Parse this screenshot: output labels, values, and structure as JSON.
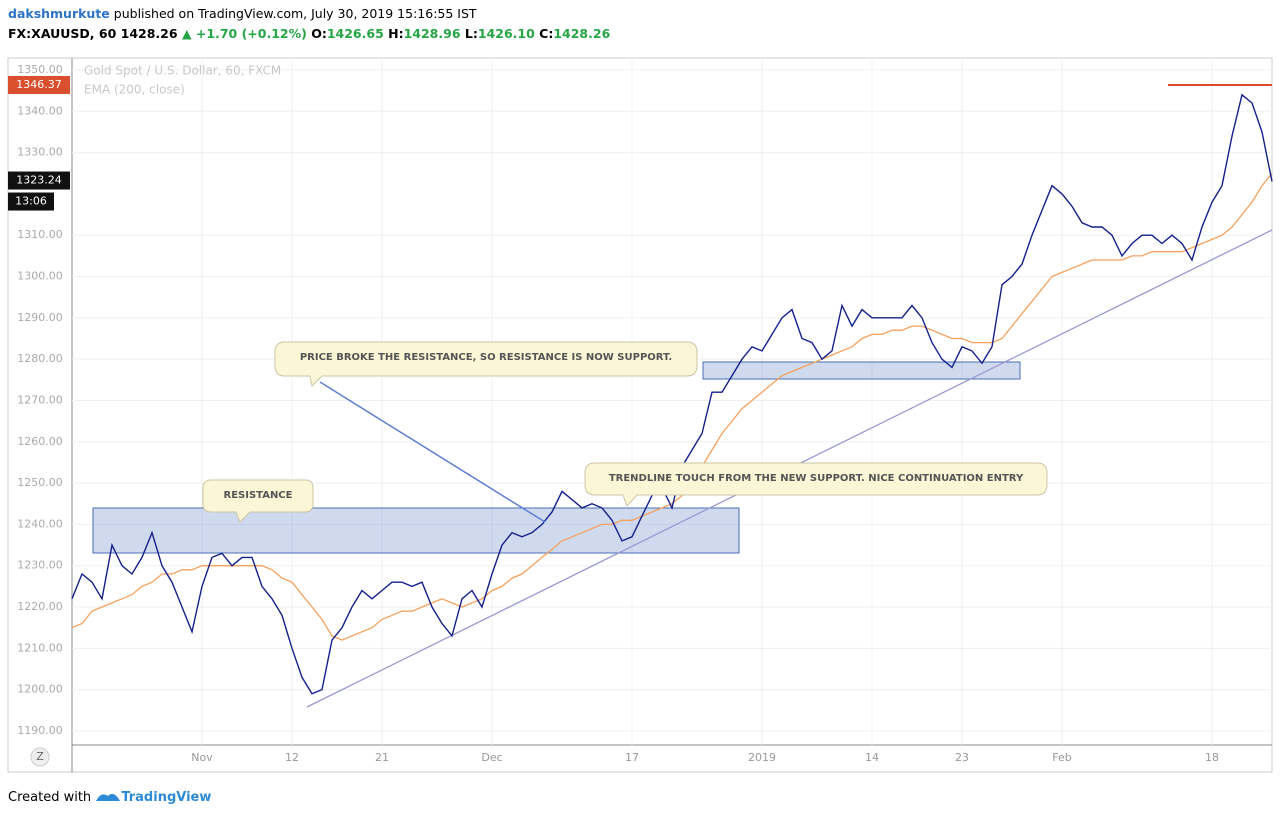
{
  "header": {
    "author": "dakshmurkute",
    "published": "published on TradingView.com, July 30, 2019 15:16:55 IST",
    "symbol": "FX:XAUUSD, 60",
    "price": "1428.26",
    "change": "▲ +1.70 (+0.12%)",
    "ohlc": [
      {
        "label": "O:",
        "value": "1426.65"
      },
      {
        "label": "H:",
        "value": "1428.96"
      },
      {
        "label": "L:",
        "value": "1426.10"
      },
      {
        "label": "C:",
        "value": "1428.26"
      }
    ]
  },
  "footer": {
    "text": "Created with",
    "brand": "TradingView"
  },
  "chart_data": {
    "type": "line",
    "categories": [
      null,
      null,
      null,
      null,
      null,
      null,
      null,
      null,
      null,
      null,
      null,
      null,
      null,
      "Nov",
      null,
      null,
      null,
      null,
      null,
      null,
      null,
      null,
      "12",
      null,
      null,
      null,
      null,
      null,
      null,
      null,
      null,
      "21",
      null,
      null,
      null,
      null,
      null,
      null,
      null,
      null,
      null,
      null,
      "Dec",
      null,
      null,
      null,
      null,
      null,
      null,
      null,
      null,
      null,
      null,
      null,
      null,
      null,
      "17",
      null,
      null,
      null,
      null,
      null,
      null,
      null,
      null,
      null,
      null,
      null,
      null,
      "2019",
      null,
      null,
      null,
      null,
      null,
      null,
      null,
      null,
      null,
      null,
      "14",
      null,
      null,
      null,
      null,
      null,
      null,
      null,
      null,
      "23",
      null,
      null,
      null,
      null,
      null,
      null,
      null,
      null,
      null,
      "Feb",
      null,
      null,
      null,
      null,
      null,
      null,
      null,
      null,
      null,
      null,
      null,
      null,
      null,
      null,
      "18",
      null,
      null,
      null,
      null,
      null,
      null
    ],
    "series": [
      {
        "name": "Gold Spot / U.S. Dollar, 60, FXCM",
        "color": "#14208c",
        "values": [
          1222,
          1228,
          1226,
          1222,
          1235,
          1230,
          1228,
          1232,
          1238,
          1230,
          1226,
          1220,
          1214,
          1225,
          1232,
          1233,
          1230,
          1232,
          1232,
          1225,
          1222,
          1218,
          1210,
          1203,
          1199,
          1200,
          1212,
          1215,
          1220,
          1224,
          1222,
          1224,
          1226,
          1226,
          1225,
          1226,
          1220,
          1216,
          1213,
          1222,
          1224,
          1220,
          1228,
          1235,
          1238,
          1237,
          1238,
          1240,
          1243,
          1248,
          1246,
          1244,
          1245,
          1244,
          1241,
          1236,
          1237,
          1242,
          1247,
          1249,
          1244,
          1254,
          1258,
          1262,
          1272,
          1272,
          1276,
          1280,
          1283,
          1282,
          1286,
          1290,
          1292,
          1285,
          1284,
          1280,
          1282,
          1293,
          1288,
          1292,
          1290,
          1290,
          1290,
          1290,
          1293,
          1290,
          1284,
          1280,
          1278,
          1283,
          1282,
          1279,
          1283,
          1298,
          1300,
          1303,
          1310,
          1316,
          1322,
          1320,
          1317,
          1313,
          1312,
          1312,
          1310,
          1305,
          1308,
          1310,
          1310,
          1308,
          1310,
          1308,
          1304,
          1312,
          1318,
          1322,
          1334,
          1344,
          1342,
          1335,
          1323
        ]
      },
      {
        "name": "EMA (200, close)",
        "color": "#f5a15c",
        "values": [
          1215,
          1216,
          1219,
          1220,
          1221,
          1222,
          1223,
          1225,
          1226,
          1228,
          1228,
          1229,
          1229,
          1230,
          1230,
          1230,
          1230,
          1230,
          1230,
          1230,
          1229,
          1227,
          1226,
          1223,
          1220,
          1217,
          1213,
          1212,
          1213,
          1214,
          1215,
          1217,
          1218,
          1219,
          1219,
          1220,
          1221,
          1222,
          1221,
          1220,
          1221,
          1222,
          1224,
          1225,
          1227,
          1228,
          1230,
          1232,
          1234,
          1236,
          1237,
          1238,
          1239,
          1240,
          1240,
          1241,
          1241,
          1242,
          1243,
          1244,
          1245,
          1247,
          1250,
          1254,
          1258,
          1262,
          1265,
          1268,
          1270,
          1272,
          1274,
          1276,
          1277,
          1278,
          1279,
          1280,
          1281,
          1282,
          1283,
          1285,
          1286,
          1286,
          1287,
          1287,
          1288,
          1288,
          1287,
          1286,
          1285,
          1285,
          1284,
          1284,
          1284,
          1285,
          1288,
          1291,
          1294,
          1297,
          1300,
          1301,
          1302,
          1303,
          1304,
          1304,
          1304,
          1304,
          1305,
          1305,
          1306,
          1306,
          1306,
          1306,
          1307,
          1308,
          1309,
          1310,
          1312,
          1315,
          1318,
          1322,
          1325
        ]
      }
    ],
    "ylim": [
      1186.6,
      1352.9
    ],
    "yticks": [
      {
        "value": 1190,
        "label": "1190.00"
      },
      {
        "value": 1200,
        "label": "1200.00"
      },
      {
        "value": 1210,
        "label": "1210.00"
      },
      {
        "value": 1220,
        "label": "1220.00"
      },
      {
        "value": 1230,
        "label": "1230.00"
      },
      {
        "value": 1240,
        "label": "1240.00"
      },
      {
        "value": 1250,
        "label": "1250.00"
      },
      {
        "value": 1260,
        "label": "1260.00"
      },
      {
        "value": 1270,
        "label": "1270.00"
      },
      {
        "value": 1280,
        "label": "1280.00"
      },
      {
        "value": 1290,
        "label": "1290.00"
      },
      {
        "value": 1300,
        "label": "1300.00"
      },
      {
        "value": 1310,
        "label": "1310.00"
      },
      {
        "value": 1330,
        "label": "1330.00"
      },
      {
        "value": 1340,
        "label": "1340.00"
      },
      {
        "value": 1350,
        "label": "1350.00"
      }
    ],
    "grid": true,
    "price_line": 1346.37,
    "last_price": 1323.24,
    "countdown": "13:06",
    "annotations": [
      "RESISTANCE",
      "PRICE BROKE THE RESISTANCE, SO RESISTANCE IS NOW SUPPORT.",
      "TRENDLINE TOUCH FROM THE NEW SUPPORT. NICE CONTINUATION ENTRY"
    ]
  }
}
